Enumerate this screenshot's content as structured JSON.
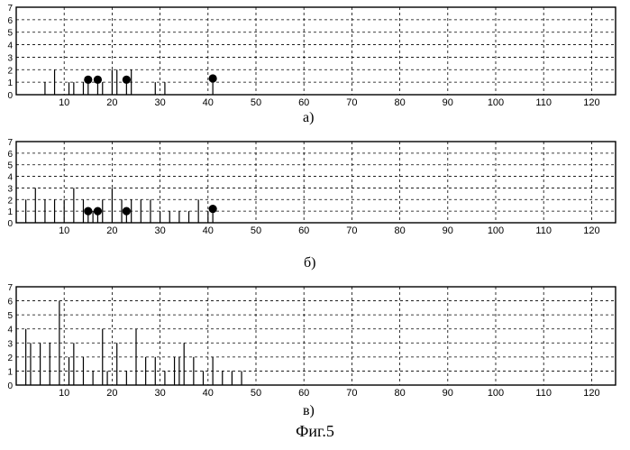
{
  "chart_data": [
    {
      "type": "stem",
      "panel_label": "a)",
      "xlim": [
        0,
        125
      ],
      "ylim": [
        0,
        7
      ],
      "x_ticks": [
        10,
        20,
        30,
        40,
        50,
        60,
        70,
        80,
        90,
        100,
        110,
        120
      ],
      "y_ticks": [
        0,
        1,
        2,
        3,
        4,
        5,
        6,
        7
      ],
      "grid": true,
      "stems": {
        "x": [
          6,
          8,
          11,
          12,
          14,
          18,
          20,
          21,
          24,
          29,
          31
        ],
        "y": [
          1,
          2,
          1,
          1,
          1,
          1,
          2,
          2,
          2,
          1,
          1
        ]
      },
      "markers": {
        "x": [
          15,
          17,
          23,
          41
        ],
        "y": [
          1.2,
          1.2,
          1.2,
          1.3
        ]
      }
    },
    {
      "type": "stem",
      "panel_label": "б)",
      "xlim": [
        0,
        125
      ],
      "ylim": [
        0,
        7
      ],
      "x_ticks": [
        10,
        20,
        30,
        40,
        50,
        60,
        70,
        80,
        90,
        100,
        110,
        120
      ],
      "y_ticks": [
        0,
        1,
        2,
        3,
        4,
        5,
        6,
        7
      ],
      "grid": true,
      "stems": {
        "x": [
          2,
          4,
          6,
          8,
          10,
          12,
          14,
          16,
          18,
          20,
          22,
          24,
          26,
          28,
          30,
          32,
          34,
          36,
          38,
          40
        ],
        "y": [
          2,
          3,
          2,
          2,
          2,
          3,
          2,
          1,
          2,
          3,
          2,
          2,
          2,
          2,
          1,
          1,
          1,
          1,
          2,
          1
        ]
      },
      "markers": {
        "x": [
          15,
          17,
          23,
          41
        ],
        "y": [
          1.0,
          1.0,
          1.0,
          1.2
        ]
      }
    },
    {
      "type": "stem",
      "panel_label": "в)",
      "xlim": [
        0,
        125
      ],
      "ylim": [
        0,
        7
      ],
      "x_ticks": [
        10,
        20,
        30,
        40,
        50,
        60,
        70,
        80,
        90,
        100,
        110,
        120
      ],
      "y_ticks": [
        0,
        1,
        2,
        3,
        4,
        5,
        6,
        7
      ],
      "grid": true,
      "stems": {
        "x": [
          2,
          3,
          5,
          7,
          9,
          11,
          12,
          14,
          16,
          18,
          19,
          21,
          23,
          25,
          27,
          29,
          31,
          33,
          34,
          35,
          37,
          39,
          41,
          43,
          45,
          47
        ],
        "y": [
          4,
          3,
          3,
          3,
          6,
          2,
          3,
          2,
          1,
          4,
          1,
          3,
          1,
          4,
          2,
          2,
          1,
          2,
          2,
          3,
          2,
          1,
          2,
          1,
          1,
          1
        ]
      },
      "markers": {
        "x": [],
        "y": []
      }
    }
  ],
  "caption": "Фиг.5"
}
